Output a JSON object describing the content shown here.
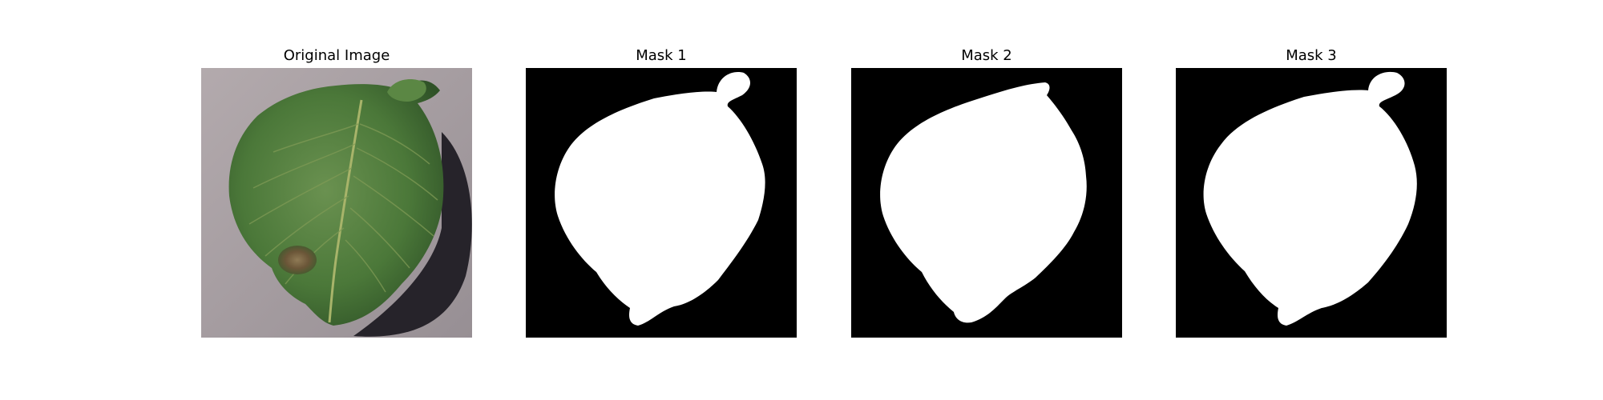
{
  "panels": [
    {
      "title": "Original Image",
      "kind": "photo",
      "subject": "leaf-photo"
    },
    {
      "title": "Mask 1",
      "kind": "mask",
      "subject": "leaf-mask"
    },
    {
      "title": "Mask 2",
      "kind": "mask",
      "subject": "leaf-mask"
    },
    {
      "title": "Mask 3",
      "kind": "mask",
      "subject": "leaf-mask"
    }
  ],
  "colors": {
    "background": "#ffffff",
    "mask_background": "#000000",
    "mask_foreground": "#ffffff",
    "surface": "#a79ea2",
    "leaf": "#4d7a3d",
    "leaf_dark": "#2f5227",
    "vein": "#a8b46a",
    "shadow": "#26232a",
    "lesion": "#6b5638"
  }
}
